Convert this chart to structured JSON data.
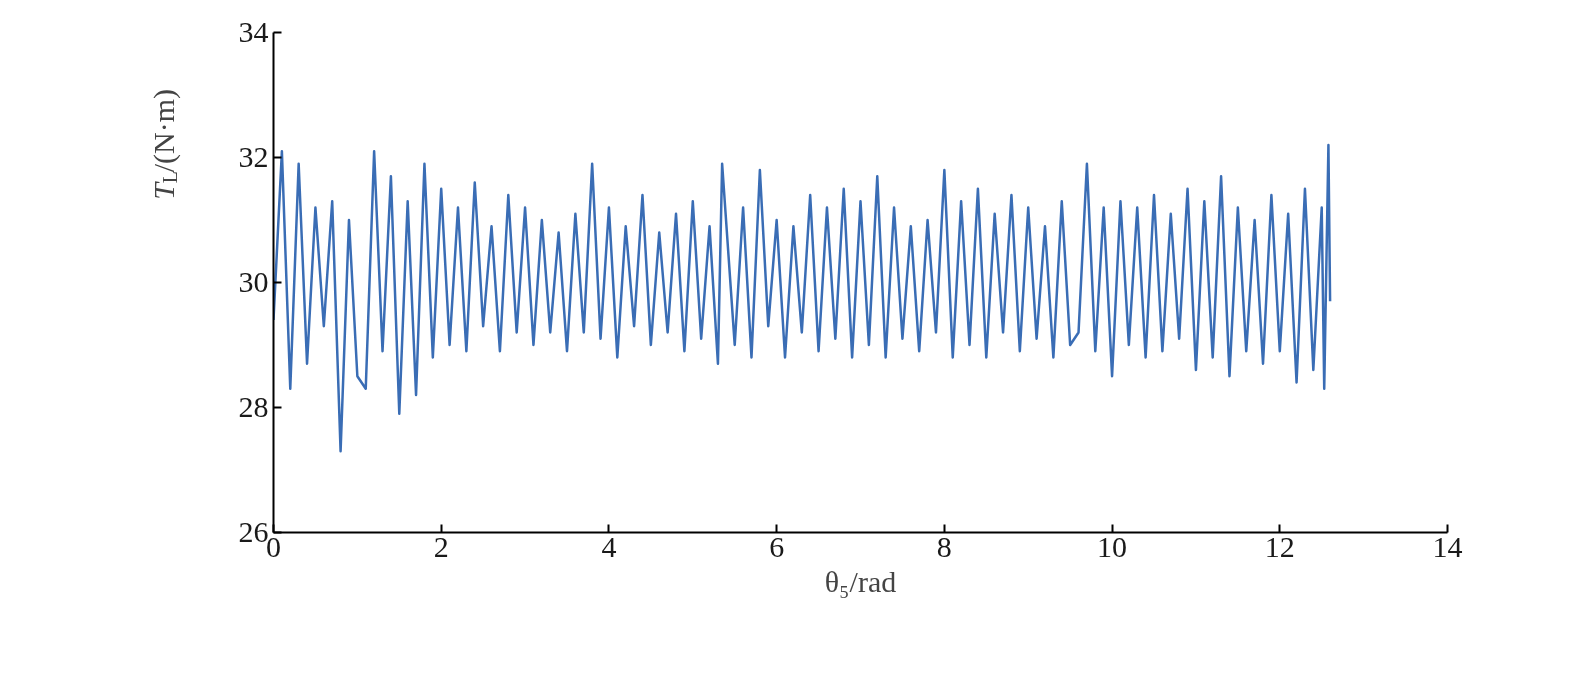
{
  "chart_data": {
    "type": "line",
    "xlabel": "θ₅/rad",
    "ylabel": "T$_{L}$/(N·m)",
    "xlim": [
      0,
      14
    ],
    "ylim": [
      26,
      34
    ],
    "xticks": [
      0,
      2,
      4,
      6,
      8,
      10,
      12,
      14
    ],
    "yticks": [
      26,
      28,
      30,
      32,
      34
    ],
    "grid": false,
    "x": [
      0,
      0.1,
      0.2,
      0.3,
      0.4,
      0.5,
      0.6,
      0.7,
      0.8,
      0.9,
      1.0,
      1.1,
      1.2,
      1.3,
      1.4,
      1.5,
      1.6,
      1.7,
      1.8,
      1.9,
      2.0,
      2.1,
      2.2,
      2.3,
      2.4,
      2.5,
      2.6,
      2.7,
      2.8,
      2.9,
      3.0,
      3.1,
      3.2,
      3.3,
      3.4,
      3.5,
      3.6,
      3.7,
      3.8,
      3.9,
      4.0,
      4.1,
      4.2,
      4.3,
      4.4,
      4.5,
      4.6,
      4.7,
      4.8,
      4.9,
      5.0,
      5.1,
      5.2,
      5.3,
      5.35,
      5.5,
      5.6,
      5.7,
      5.8,
      5.9,
      6.0,
      6.1,
      6.2,
      6.3,
      6.4,
      6.5,
      6.6,
      6.7,
      6.8,
      6.9,
      7.0,
      7.1,
      7.2,
      7.3,
      7.4,
      7.5,
      7.6,
      7.7,
      7.8,
      7.9,
      8.0,
      8.1,
      8.2,
      8.3,
      8.4,
      8.5,
      8.6,
      8.7,
      8.8,
      8.9,
      9.0,
      9.1,
      9.2,
      9.3,
      9.4,
      9.5,
      9.6,
      9.7,
      9.8,
      9.9,
      10.0,
      10.1,
      10.2,
      10.3,
      10.4,
      10.5,
      10.6,
      10.7,
      10.8,
      10.9,
      11.0,
      11.1,
      11.2,
      11.3,
      11.4,
      11.5,
      11.6,
      11.7,
      11.8,
      11.9,
      12.0,
      12.1,
      12.2,
      12.3,
      12.4,
      12.5,
      12.53,
      12.58,
      12.6
    ],
    "series": [
      {
        "color": "#3a6db5",
        "values": [
          29.4,
          32.1,
          28.3,
          31.9,
          28.7,
          31.2,
          29.3,
          31.3,
          27.3,
          31.0,
          28.5,
          28.3,
          32.1,
          28.9,
          31.7,
          27.9,
          31.3,
          28.2,
          31.9,
          28.8,
          31.5,
          29.0,
          31.2,
          28.9,
          31.6,
          29.3,
          30.9,
          28.9,
          31.4,
          29.2,
          31.2,
          29.0,
          31.0,
          29.2,
          30.8,
          28.9,
          31.1,
          29.2,
          31.9,
          29.1,
          31.2,
          28.8,
          30.9,
          29.3,
          31.4,
          29.0,
          30.8,
          29.2,
          31.1,
          28.9,
          31.3,
          29.1,
          30.9,
          28.7,
          31.9,
          29.0,
          31.2,
          28.8,
          31.8,
          29.3,
          31.0,
          28.8,
          30.9,
          29.2,
          31.4,
          28.9,
          31.2,
          29.1,
          31.5,
          28.8,
          31.3,
          29.0,
          31.7,
          28.8,
          31.2,
          29.1,
          30.9,
          28.9,
          31.0,
          29.2,
          31.8,
          28.8,
          31.3,
          29.0,
          31.5,
          28.8,
          31.1,
          29.2,
          31.4,
          28.9,
          31.2,
          29.1,
          30.9,
          28.8,
          31.3,
          29.0,
          29.2,
          31.9,
          28.9,
          31.2,
          28.5,
          31.3,
          29.0,
          31.2,
          28.8,
          31.4,
          28.9,
          31.1,
          29.1,
          31.5,
          28.6,
          31.3,
          28.8,
          31.7,
          28.5,
          31.2,
          28.9,
          31.0,
          28.7,
          31.4,
          28.9,
          31.1,
          28.4,
          31.5,
          28.6,
          31.2,
          28.3,
          32.2,
          29.7
        ]
      }
    ]
  }
}
